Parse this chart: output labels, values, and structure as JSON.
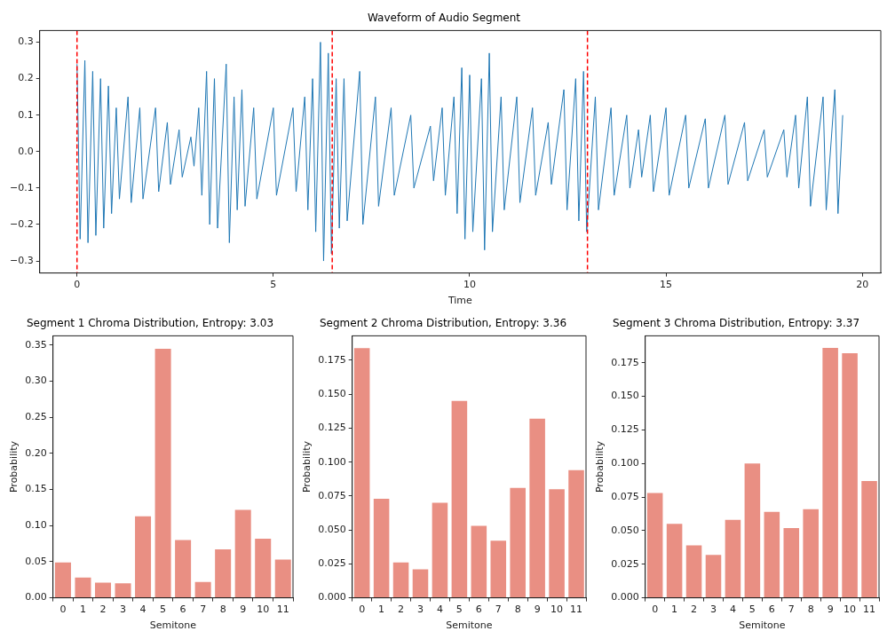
{
  "chart_data": [
    {
      "type": "line",
      "title": "Waveform of Audio Segment",
      "xlabel": "Time",
      "color": "#1f77b4",
      "marker": "none",
      "grid": false,
      "x": [
        0.0,
        0.08,
        0.2,
        0.28,
        0.4,
        0.48,
        0.6,
        0.68,
        0.8,
        0.88,
        1.0,
        1.08,
        1.3,
        1.38,
        1.6,
        1.68,
        2.0,
        2.08,
        2.3,
        2.38,
        2.6,
        2.68,
        2.9,
        2.98,
        3.1,
        3.18,
        3.3,
        3.38,
        3.5,
        3.58,
        3.8,
        3.88,
        4.0,
        4.08,
        4.2,
        4.28,
        4.5,
        4.58,
        5.0,
        5.08,
        5.5,
        5.58,
        5.8,
        5.88,
        6.0,
        6.08,
        6.2,
        6.28,
        6.4,
        6.48,
        6.6,
        6.68,
        6.8,
        6.88,
        7.2,
        7.28,
        7.6,
        7.68,
        8.0,
        8.08,
        8.5,
        8.58,
        9.0,
        9.08,
        9.3,
        9.38,
        9.6,
        9.68,
        9.8,
        9.88,
        10.0,
        10.08,
        10.3,
        10.38,
        10.5,
        10.58,
        10.8,
        10.88,
        11.2,
        11.28,
        11.6,
        11.68,
        12.0,
        12.08,
        12.4,
        12.48,
        12.7,
        12.78,
        12.9,
        12.98,
        13.2,
        13.28,
        13.6,
        13.68,
        14.0,
        14.08,
        14.3,
        14.38,
        14.6,
        14.68,
        15.0,
        15.08,
        15.5,
        15.58,
        16.0,
        16.08,
        16.5,
        16.58,
        17.0,
        17.08,
        17.5,
        17.58,
        18.0,
        18.08,
        18.3,
        18.38,
        18.6,
        18.68,
        19.0,
        19.08,
        19.3,
        19.38,
        19.5
      ],
      "values": [
        0.24,
        -0.24,
        0.25,
        -0.25,
        0.22,
        -0.23,
        0.2,
        -0.21,
        0.18,
        -0.17,
        0.12,
        -0.13,
        0.15,
        -0.14,
        0.12,
        -0.13,
        0.12,
        -0.11,
        0.08,
        -0.09,
        0.06,
        -0.07,
        0.04,
        -0.04,
        0.12,
        -0.12,
        0.22,
        -0.2,
        0.2,
        -0.21,
        0.24,
        -0.25,
        0.15,
        -0.16,
        0.17,
        -0.15,
        0.12,
        -0.13,
        0.12,
        -0.12,
        0.12,
        -0.11,
        0.15,
        -0.16,
        0.2,
        -0.22,
        0.3,
        -0.3,
        0.27,
        -0.28,
        0.2,
        -0.21,
        0.2,
        -0.19,
        0.22,
        -0.2,
        0.15,
        -0.15,
        0.12,
        -0.12,
        0.1,
        -0.1,
        0.07,
        -0.08,
        0.12,
        -0.12,
        0.15,
        -0.17,
        0.23,
        -0.24,
        0.21,
        -0.22,
        0.2,
        -0.27,
        0.27,
        -0.22,
        0.15,
        -0.16,
        0.15,
        -0.14,
        0.12,
        -0.12,
        0.08,
        -0.09,
        0.17,
        -0.16,
        0.2,
        -0.19,
        0.22,
        -0.22,
        0.15,
        -0.16,
        0.12,
        -0.12,
        0.1,
        -0.1,
        0.06,
        -0.07,
        0.1,
        -0.11,
        0.12,
        -0.12,
        0.1,
        -0.1,
        0.09,
        -0.1,
        0.1,
        -0.09,
        0.08,
        -0.08,
        0.06,
        -0.07,
        0.06,
        -0.07,
        0.1,
        -0.1,
        0.15,
        -0.15,
        0.15,
        -0.16,
        0.17,
        -0.17,
        0.1
      ],
      "xlim": [
        -0.95,
        20.47
      ],
      "ylim": [
        -0.333,
        0.332
      ],
      "xticks": [
        0,
        5,
        10,
        15,
        20
      ],
      "yticks": [
        {
          "value": -0.3,
          "label": "−0.3"
        },
        {
          "value": -0.2,
          "label": "−0.2"
        },
        {
          "value": -0.1,
          "label": "−0.1"
        },
        {
          "value": 0,
          "label": "0.0"
        },
        0.1,
        0.2,
        0.3
      ],
      "ref_lines": [
        {
          "axis": "x",
          "value": 0,
          "color": "#ff0000",
          "line_style": "dashed"
        },
        {
          "axis": "x",
          "value": 6.5,
          "color": "#ff0000",
          "line_style": "dashed"
        },
        {
          "axis": "x",
          "value": 13,
          "color": "#ff0000",
          "line_style": "dashed"
        }
      ]
    },
    {
      "type": "bar",
      "title": "Segment 1 Chroma Distribution, Entropy: 3.03",
      "xlabel": "Semitone",
      "ylabel": "Probability",
      "color": "#e98f83",
      "categories": [
        "0",
        "1",
        "2",
        "3",
        "4",
        "5",
        "6",
        "7",
        "8",
        "9",
        "10",
        "11"
      ],
      "values": [
        0.049,
        0.028,
        0.021,
        0.02,
        0.113,
        0.345,
        0.08,
        0.022,
        0.067,
        0.122,
        0.082,
        0.053
      ],
      "ylim": [
        0,
        0.363
      ],
      "yticks": [
        {
          "value": 0,
          "label": "0.00"
        },
        0.05,
        {
          "value": 0.1,
          "label": "0.10"
        },
        0.15,
        {
          "value": 0.2,
          "label": "0.20"
        },
        0.25,
        {
          "value": 0.3,
          "label": "0.30"
        },
        0.35
      ]
    },
    {
      "type": "bar",
      "title": "Segment 2 Chroma Distribution, Entropy: 3.36",
      "xlabel": "Semitone",
      "ylabel": "Probability",
      "color": "#e98f83",
      "categories": [
        "0",
        "1",
        "2",
        "3",
        "4",
        "5",
        "6",
        "7",
        "8",
        "9",
        "10",
        "11"
      ],
      "values": [
        0.184,
        0.073,
        0.026,
        0.021,
        0.07,
        0.145,
        0.053,
        0.042,
        0.081,
        0.132,
        0.08,
        0.094
      ],
      "ylim": [
        0,
        0.193
      ],
      "yticks": [
        {
          "value": 0,
          "label": "0.000"
        },
        0.025,
        {
          "value": 0.05,
          "label": "0.050"
        },
        0.075,
        {
          "value": 0.1,
          "label": "0.100"
        },
        0.125,
        {
          "value": 0.15,
          "label": "0.150"
        },
        0.175
      ]
    },
    {
      "type": "bar",
      "title": "Segment 3 Chroma Distribution, Entropy: 3.37",
      "xlabel": "Semitone",
      "ylabel": "Probability",
      "color": "#e98f83",
      "categories": [
        "0",
        "1",
        "2",
        "3",
        "4",
        "5",
        "6",
        "7",
        "8",
        "9",
        "10",
        "11"
      ],
      "values": [
        0.078,
        0.055,
        0.039,
        0.032,
        0.058,
        0.1,
        0.064,
        0.052,
        0.066,
        0.186,
        0.182,
        0.087
      ],
      "ylim": [
        0,
        0.195
      ],
      "yticks": [
        {
          "value": 0,
          "label": "0.000"
        },
        0.025,
        {
          "value": 0.05,
          "label": "0.050"
        },
        0.075,
        {
          "value": 0.1,
          "label": "0.100"
        },
        0.125,
        {
          "value": 0.15,
          "label": "0.150"
        },
        0.175
      ]
    }
  ]
}
